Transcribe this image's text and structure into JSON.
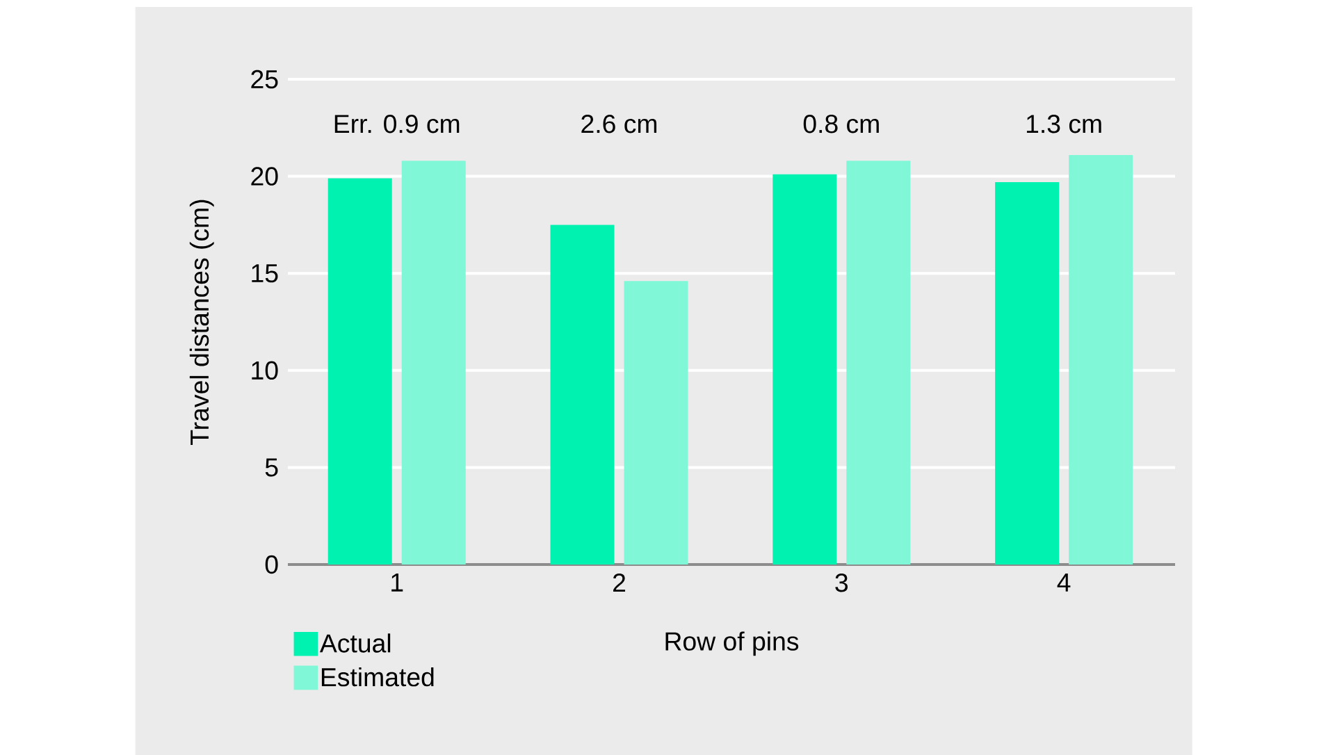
{
  "chart_data": {
    "type": "bar",
    "xlabel": "Row of pins",
    "ylabel": "Travel distances (cm)",
    "categories": [
      "1",
      "2",
      "3",
      "4"
    ],
    "series": [
      {
        "name": "Actual",
        "color": "#00f2b0",
        "values": [
          19.9,
          17.5,
          20.1,
          19.7
        ]
      },
      {
        "name": "Estimated",
        "color": "#80f7d6",
        "values": [
          20.8,
          14.6,
          20.8,
          21.1
        ]
      }
    ],
    "annotations": [
      "Err. 0.9 cm",
      "2.6 cm",
      "0.8 cm",
      "1.3 cm"
    ],
    "ylim": [
      0,
      25
    ],
    "yticks": [
      0,
      5,
      10,
      15,
      20,
      25
    ],
    "grid": "y",
    "legend": "bottom left"
  }
}
